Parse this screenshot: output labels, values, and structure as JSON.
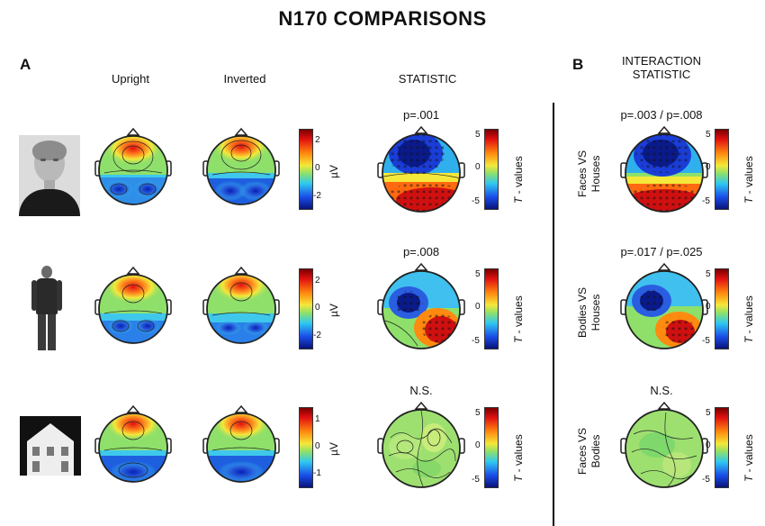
{
  "title": "N170 COMPARISONS",
  "panels": {
    "a": "A",
    "b": "B"
  },
  "columns": {
    "upright": "Upright",
    "inverted": "Inverted",
    "statistic": "STATISTIC",
    "interaction_line1": "INTERACTION",
    "interaction_line2": "STATISTIC"
  },
  "rows": [
    {
      "stimulus": "face",
      "p_stat": "p=.001",
      "p_inter": "p=.003 / p=.008",
      "inter_label_1": "Faces VS",
      "inter_label_2": "Houses",
      "uv_ticks": [
        "2",
        "0",
        "-2"
      ],
      "t_ticks": [
        "5",
        "0",
        "-5"
      ]
    },
    {
      "stimulus": "body",
      "p_stat": "p=.008",
      "p_inter": "p=.017 / p=.025",
      "inter_label_1": "Bodies VS",
      "inter_label_2": "Houses",
      "uv_ticks": [
        "2",
        "0",
        "-2"
      ],
      "t_ticks": [
        "5",
        "0",
        "-5"
      ]
    },
    {
      "stimulus": "house",
      "p_stat": "N.S.",
      "p_inter": "N.S.",
      "inter_label_1": "Faces VS",
      "inter_label_2": "Bodies",
      "uv_ticks": [
        "1",
        "0",
        "-1"
      ],
      "t_ticks": [
        "5",
        "0",
        "-5"
      ]
    }
  ],
  "units": {
    "uv": "µV",
    "t_italic": "T",
    "t_rest": " - values"
  },
  "colors": {
    "hot": "#c0001a",
    "warm": "#ff7a1a",
    "yellow": "#f4e83a",
    "green": "#7fd86a",
    "cyan": "#2fb8e8",
    "blue": "#1a3dd8",
    "dark": "#081a8a"
  }
}
